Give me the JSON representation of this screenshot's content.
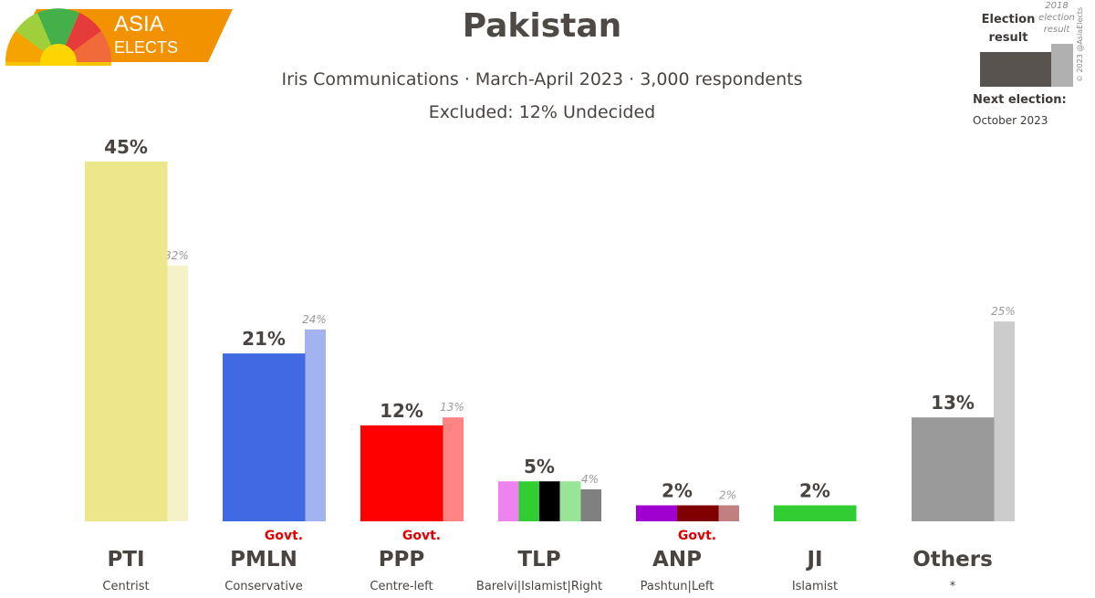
{
  "logo": {
    "line1": "ASIA",
    "line2": "ELECTS"
  },
  "header": {
    "title": "Pakistan",
    "subtitle": "Iris Communications · March-April 2023 · 3,000 respondents",
    "excluded": "Excluded: 12% Undecided"
  },
  "legend": {
    "current_label": "Election result",
    "previous_label": "2018 election result",
    "copyright": "© 2023 @AsiaElects",
    "next_election_label": "Next election:",
    "next_election_date": "October 2023",
    "current_color": "#58534f",
    "previous_color": "#b0b0b0"
  },
  "chart_data": {
    "type": "bar",
    "ylim": [
      0,
      45
    ],
    "govt_label": "Govt.",
    "series": [
      {
        "name": "Election result",
        "values": [
          45,
          21,
          12,
          5,
          2,
          2,
          13
        ]
      },
      {
        "name": "2018 election result",
        "values": [
          32,
          24,
          13,
          4,
          2,
          null,
          25
        ]
      }
    ],
    "parties": [
      {
        "name": "PTI",
        "ideology": "Centrist",
        "value": 45,
        "value_label": "45%",
        "prev": 32,
        "prev_label": "32%",
        "govt": false,
        "colors": [
          "#eee68a"
        ],
        "prev_color": "#f6f2c8"
      },
      {
        "name": "PMLN",
        "ideology": "Conservative",
        "value": 21,
        "value_label": "21%",
        "prev": 24,
        "prev_label": "24%",
        "govt": true,
        "colors": [
          "#4169e1"
        ],
        "prev_color": "#a2b3ef"
      },
      {
        "name": "PPP",
        "ideology": "Centre-left",
        "value": 12,
        "value_label": "12%",
        "prev": 13,
        "prev_label": "13%",
        "govt": true,
        "colors": [
          "#ff0000"
        ],
        "prev_color": "#ff8585"
      },
      {
        "name": "TLP",
        "ideology": "Barelvi|Islamist|Right",
        "value": 5,
        "value_label": "5%",
        "prev": 4,
        "prev_label": "4%",
        "govt": false,
        "colors": [
          "#ee82ee",
          "#32cd32",
          "#000000",
          "#98e598"
        ],
        "prev_color": "#808080"
      },
      {
        "name": "ANP",
        "ideology": "Pashtun|Left",
        "value": 2,
        "value_label": "2%",
        "prev": 2,
        "prev_label": "2%",
        "govt": true,
        "colors": [
          "#a000d0",
          "#800000"
        ],
        "prev_color": "#c08080"
      },
      {
        "name": "JI",
        "ideology": "Islamist",
        "value": 2,
        "value_label": "2%",
        "prev": null,
        "prev_label": "",
        "govt": false,
        "colors": [
          "#32cd32"
        ],
        "prev_color": "#cccccc"
      },
      {
        "name": "Others",
        "ideology": "*",
        "value": 13,
        "value_label": "13%",
        "prev": 25,
        "prev_label": "25%",
        "govt": false,
        "colors": [
          "#9a9a9a"
        ],
        "prev_color": "#cccccc"
      }
    ]
  }
}
